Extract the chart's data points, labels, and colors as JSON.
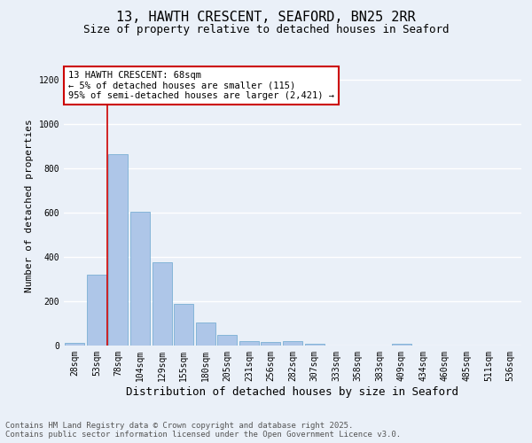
{
  "title": "13, HAWTH CRESCENT, SEAFORD, BN25 2RR",
  "subtitle": "Size of property relative to detached houses in Seaford",
  "xlabel": "Distribution of detached houses by size in Seaford",
  "ylabel": "Number of detached properties",
  "categories": [
    "28sqm",
    "53sqm",
    "78sqm",
    "104sqm",
    "129sqm",
    "155sqm",
    "180sqm",
    "205sqm",
    "231sqm",
    "256sqm",
    "282sqm",
    "307sqm",
    "333sqm",
    "358sqm",
    "383sqm",
    "409sqm",
    "434sqm",
    "460sqm",
    "485sqm",
    "511sqm",
    "536sqm"
  ],
  "values": [
    13,
    320,
    865,
    605,
    375,
    190,
    105,
    48,
    22,
    16,
    22,
    8,
    0,
    0,
    0,
    8,
    0,
    0,
    0,
    0,
    0
  ],
  "bar_color": "#aec6e8",
  "bar_edge_color": "#7aafd4",
  "vline_color": "#cc0000",
  "vline_x": 1.5,
  "annotation_text": "13 HAWTH CRESCENT: 68sqm\n← 5% of detached houses are smaller (115)\n95% of semi-detached houses are larger (2,421) →",
  "annotation_box_color": "#ffffff",
  "annotation_box_edge": "#cc0000",
  "ylim": [
    0,
    1260
  ],
  "yticks": [
    0,
    200,
    400,
    600,
    800,
    1000,
    1200
  ],
  "background_color": "#eaf0f8",
  "grid_color": "#ffffff",
  "footer": "Contains HM Land Registry data © Crown copyright and database right 2025.\nContains public sector information licensed under the Open Government Licence v3.0.",
  "title_fontsize": 11,
  "subtitle_fontsize": 9,
  "xlabel_fontsize": 9,
  "ylabel_fontsize": 8,
  "tick_fontsize": 7,
  "annotation_fontsize": 7.5,
  "footer_fontsize": 6.5
}
